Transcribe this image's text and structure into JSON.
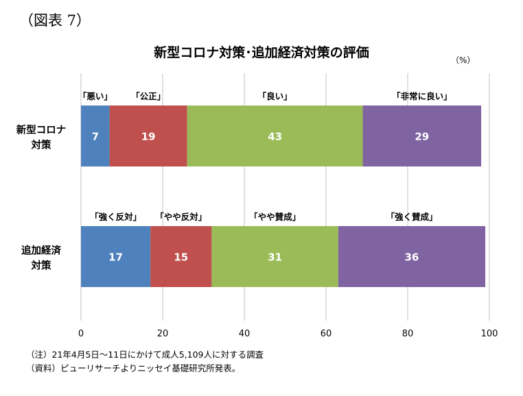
{
  "figure_label": "（図表 7）",
  "chart_data": {
    "type": "bar",
    "orientation": "horizontal",
    "stacked": true,
    "title": "新型コロナ対策･追加経済対策の評価",
    "unit": "（%）",
    "xlim": [
      0,
      100
    ],
    "x_ticks": [
      "0",
      "20",
      "40",
      "60",
      "80",
      "100"
    ],
    "grid": "vertical",
    "rows": [
      {
        "label": "新型コロナ対策",
        "label_lines": [
          "新型コロナ",
          "対策"
        ],
        "segments": [
          {
            "name": "「悪い」",
            "value": 7,
            "color": "#4f81bd"
          },
          {
            "name": "「公正」",
            "value": 19,
            "color": "#c0504d"
          },
          {
            "name": "「良い」",
            "value": 43,
            "color": "#9bbb59"
          },
          {
            "name": "「非常に良い」",
            "value": 29,
            "color": "#8064a2"
          }
        ]
      },
      {
        "label": "追加経済対策",
        "label_lines": [
          "追加経済",
          "対策"
        ],
        "segments": [
          {
            "name": "「強く反対」",
            "value": 17,
            "color": "#4f81bd"
          },
          {
            "name": "「やや反対」",
            "value": 15,
            "color": "#c0504d"
          },
          {
            "name": "「やや賛成」",
            "value": 31,
            "color": "#9bbb59"
          },
          {
            "name": "「強く賛成」",
            "value": 36,
            "color": "#8064a2"
          }
        ]
      }
    ]
  },
  "notes": {
    "note": "（注）21年4月5日～11日にかけて成人5,109人に対する調査",
    "source": "（資料）ピューリサーチよりニッセイ基礎研究所発表。"
  }
}
